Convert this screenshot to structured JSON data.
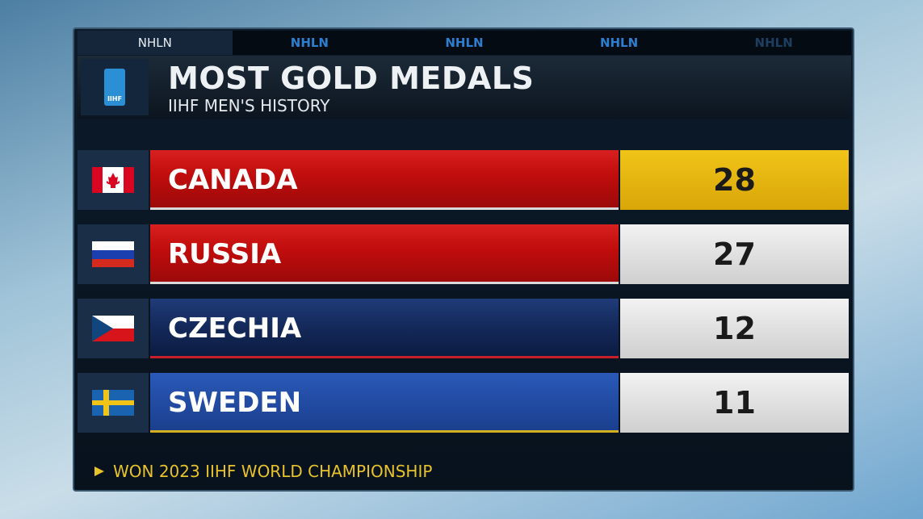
{
  "tabs": [
    "NHLN",
    "NHLN",
    "NHLN",
    "NHLN",
    "NHLN"
  ],
  "header": {
    "logo": "IIHF",
    "title": "MOST GOLD MEDALS",
    "subtitle": "IIHF MEN'S HISTORY"
  },
  "table": {
    "rows": [
      {
        "country": "CANADA",
        "gold_medals": 28
      },
      {
        "country": "RUSSIA",
        "gold_medals": 27
      },
      {
        "country": "CZECHIA",
        "gold_medals": 12
      },
      {
        "country": "SWEDEN",
        "gold_medals": 11
      }
    ]
  },
  "footer": "WON 2023 IIHF WORLD CHAMPIONSHIP"
}
